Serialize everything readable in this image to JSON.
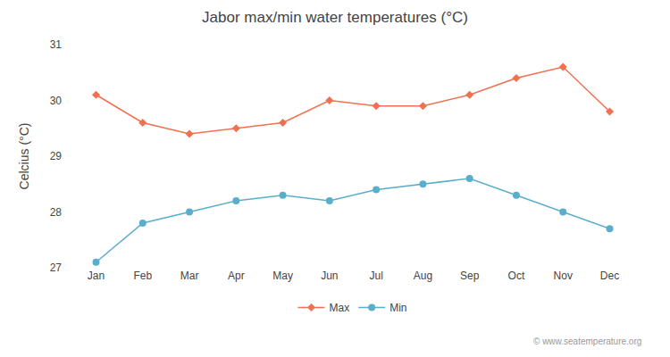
{
  "chart_data": {
    "type": "line",
    "title": "Jabor max/min water temperatures (°C)",
    "ylabel": "Celcius (°C)",
    "categories": [
      "Jan",
      "Feb",
      "Mar",
      "Apr",
      "May",
      "Jun",
      "Jul",
      "Aug",
      "Sep",
      "Oct",
      "Nov",
      "Dec"
    ],
    "series": [
      {
        "name": "Max",
        "color": "#f07050",
        "marker": "diamond",
        "line_style": "solid",
        "values": [
          30.1,
          29.6,
          29.4,
          29.5,
          29.6,
          30.0,
          29.9,
          29.9,
          30.1,
          30.4,
          30.6,
          29.8
        ]
      },
      {
        "name": "Min",
        "color": "#5aaecc",
        "marker": "circle",
        "line_style": "solid",
        "values": [
          27.1,
          27.8,
          28.0,
          28.2,
          28.3,
          28.2,
          28.4,
          28.5,
          28.6,
          28.3,
          28.0,
          27.7
        ]
      }
    ],
    "ylim": [
      27.0,
      31.0
    ],
    "yticks": [
      27,
      28,
      29,
      30,
      31
    ],
    "grid": false,
    "legend": "bottom",
    "annotations": [
      "© www.seatemperature.org"
    ]
  }
}
